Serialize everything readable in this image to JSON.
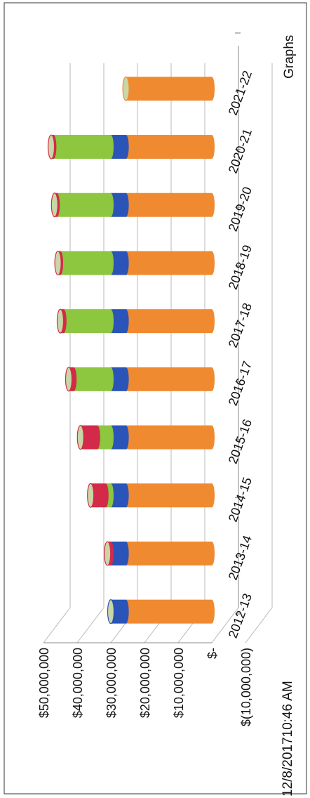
{
  "page": {
    "label": "Graphs",
    "stamp": "12/8/201710:46 AM"
  },
  "chart_data": {
    "type": "bar",
    "stacked": true,
    "three_d": true,
    "orientation": "rotated-page",
    "title": "",
    "xlabel": "",
    "ylabel": "",
    "categories": [
      "2012-13",
      "2013-14",
      "2014-15",
      "2015-16",
      "2016-17",
      "2017-18",
      "2018-19",
      "2019-20",
      "2020-21",
      "2021-22"
    ],
    "ylim": [
      -10000000,
      50000000
    ],
    "y_ticks": [
      -10000000,
      0,
      10000000,
      20000000,
      30000000,
      40000000,
      50000000
    ],
    "y_tick_labels": [
      "$(10,000,000)",
      "$-",
      "$10,000,000",
      "$20,000,000",
      "$30,000,000",
      "$40,000,000",
      "$50,000,000"
    ],
    "grid": true,
    "series": [
      {
        "color": "#f08a30",
        "values": [
          25500000,
          25500000,
          25500000,
          25500000,
          25500000,
          25500000,
          25500000,
          25500000,
          25500000,
          25500000
        ]
      },
      {
        "color": "#2a54b8",
        "values": [
          4500000,
          4500000,
          4500000,
          4500000,
          4500000,
          4500000,
          4500000,
          4500000,
          4500000,
          0
        ]
      },
      {
        "color": "#8dc63f",
        "values": [
          0,
          0,
          1500000,
          4000000,
          11000000,
          14000000,
          15000000,
          16000000,
          17000000,
          0
        ]
      },
      {
        "color": "#d42a4a",
        "values": [
          0,
          1000000,
          4500000,
          5000000,
          1500000,
          1000000,
          700000,
          700000,
          700000,
          0
        ]
      }
    ]
  }
}
